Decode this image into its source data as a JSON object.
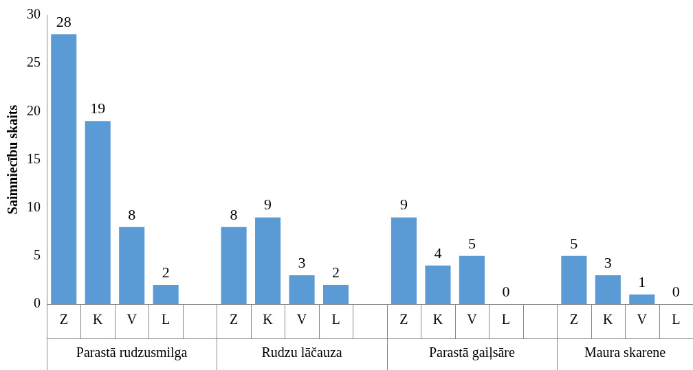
{
  "chart_data": {
    "type": "bar",
    "ylabel": "Saimniecību skaits",
    "categories": [
      "Z",
      "K",
      "V",
      "L",
      null,
      "Z",
      "K",
      "V",
      "L",
      null,
      "Z",
      "K",
      "V",
      "L",
      null,
      "Z",
      "K",
      "V",
      "L"
    ],
    "values": [
      28,
      19,
      8,
      2,
      null,
      8,
      9,
      3,
      2,
      null,
      9,
      4,
      5,
      0,
      null,
      5,
      3,
      1,
      0
    ],
    "color": "#5b9bd5",
    "ylim": [
      0,
      30
    ],
    "yticks": [
      0,
      5,
      10,
      15,
      20,
      25,
      30
    ],
    "data_labels": true,
    "annotations": [
      "Parastā rudzusmilga",
      "Rudzu lāčauza",
      "Parastā gaiļsāre",
      "Maura skarene"
    ]
  }
}
